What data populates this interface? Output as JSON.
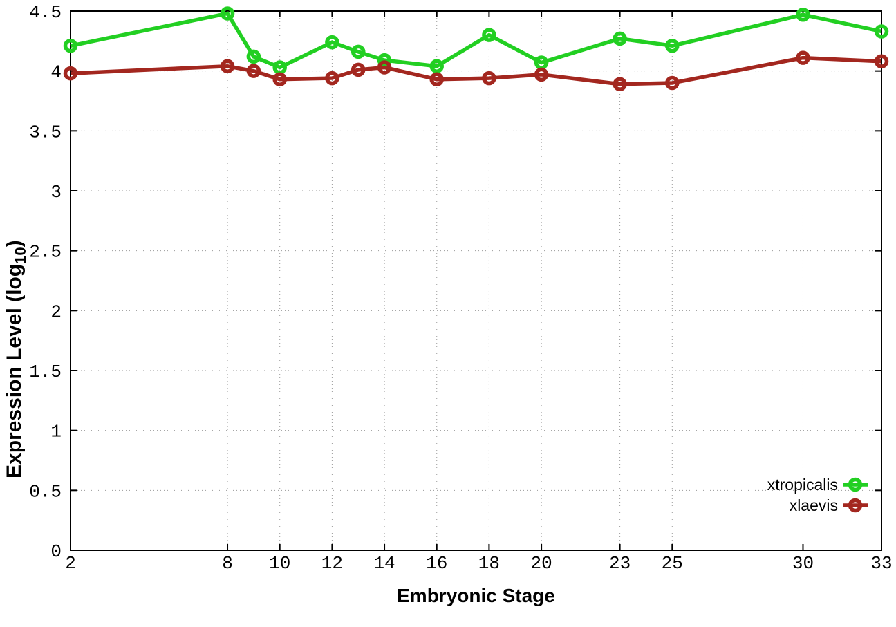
{
  "chart_data": {
    "type": "line",
    "title": "",
    "xlabel": "Embryonic Stage",
    "ylabel": "Expression Level (log10)",
    "ylabel_parts": {
      "pre": "Expression Level (log",
      "sub": "10",
      "post": ")"
    },
    "xlim": [
      2,
      33
    ],
    "ylim": [
      0,
      4.5
    ],
    "x_ticks": [
      2,
      8,
      10,
      12,
      14,
      16,
      18,
      20,
      23,
      25,
      30,
      33
    ],
    "y_ticks": [
      0,
      0.5,
      1,
      1.5,
      2,
      2.5,
      3,
      3.5,
      4,
      4.5
    ],
    "grid": true,
    "grid_style": "dotted",
    "legend_position": "bottom-right",
    "marker": "open-circle",
    "axis_color": "#000000",
    "grid_color": "#9a9a9a",
    "x": [
      2,
      8,
      9,
      10,
      12,
      13,
      14,
      16,
      18,
      20,
      23,
      25,
      30,
      33
    ],
    "series": [
      {
        "name": "xtropicalis",
        "color": "#22cf22",
        "values": [
          4.21,
          4.48,
          4.12,
          4.03,
          4.24,
          4.16,
          4.09,
          4.04,
          4.3,
          4.07,
          4.27,
          4.21,
          4.47,
          4.33
        ]
      },
      {
        "name": "xlaevis",
        "color": "#a3271f",
        "values": [
          3.98,
          4.04,
          4.0,
          3.93,
          3.94,
          4.01,
          4.03,
          3.93,
          3.94,
          3.97,
          3.89,
          3.9,
          4.11,
          4.08
        ]
      }
    ]
  }
}
